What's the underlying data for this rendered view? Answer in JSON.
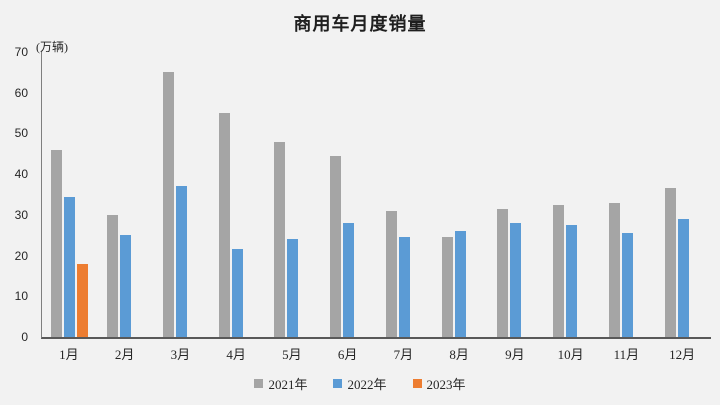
{
  "title": "商用车月度销量",
  "unit_label": "(万辆)",
  "colors": {
    "background": "#f2f2f2",
    "axis_line": "#595959",
    "text": "#262626",
    "series_2021": "#a5a5a5",
    "series_2022": "#5b9bd5",
    "series_2023": "#ed7d31"
  },
  "chart_data": {
    "type": "bar",
    "title": "商用车月度销量",
    "ylabel": "(万辆)",
    "xlabel": "",
    "ylim": [
      0,
      70
    ],
    "yticks": [
      0,
      10,
      20,
      30,
      40,
      50,
      60,
      70
    ],
    "grid": false,
    "legend_position": "bottom",
    "categories": [
      "1月",
      "2月",
      "3月",
      "4月",
      "5月",
      "6月",
      "7月",
      "8月",
      "9月",
      "10月",
      "11月",
      "12月"
    ],
    "series": [
      {
        "name": "2021年",
        "color": "#a5a5a5",
        "values": [
          46,
          30,
          65,
          55,
          48,
          44.5,
          31,
          24.5,
          31.5,
          32.5,
          33,
          36.5
        ]
      },
      {
        "name": "2022年",
        "color": "#5b9bd5",
        "values": [
          34.5,
          25,
          37,
          21.5,
          24,
          28,
          24.5,
          26,
          28,
          27.5,
          25.5,
          29
        ]
      },
      {
        "name": "2023年",
        "color": "#ed7d31",
        "values": [
          18,
          null,
          null,
          null,
          null,
          null,
          null,
          null,
          null,
          null,
          null,
          null
        ]
      }
    ]
  }
}
